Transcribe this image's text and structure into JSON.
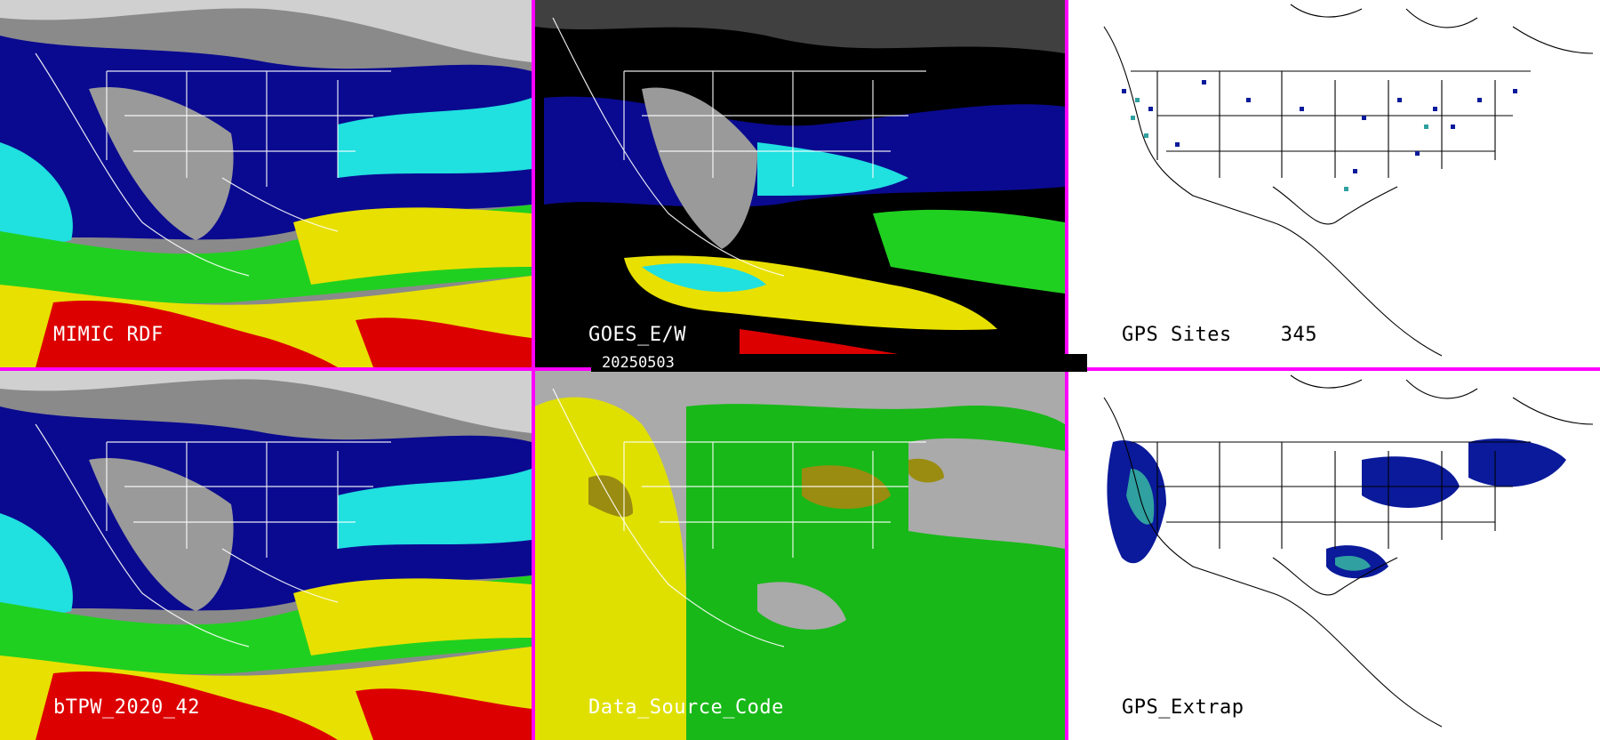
{
  "panels": [
    {
      "label": "MIMIC RDF"
    },
    {
      "label": "GOES_E/W"
    },
    {
      "label": "GPS Sites",
      "count": "345"
    },
    {
      "label": "bTPW_2020_42"
    },
    {
      "label": "Data_Source_Code"
    },
    {
      "label": "GPS_Extrap"
    }
  ],
  "timestamp": "20250503",
  "colors": {
    "divider": "#ff00ff",
    "tpw_gray": "#9a9a9a",
    "tpw_navy": "#0a0a90",
    "tpw_blue": "#1a3cff",
    "tpw_cyan": "#20e0e0",
    "tpw_green": "#20d020",
    "tpw_yellow": "#e8e000",
    "tpw_orange": "#d8a000",
    "tpw_red": "#dd0000",
    "src_gray": "#aaaaaa",
    "src_yellow": "#e0e000",
    "src_green": "#18b818",
    "src_olive": "#9a8c10",
    "gps_navy": "#0a1a9a",
    "gps_teal": "#30a0a0"
  }
}
